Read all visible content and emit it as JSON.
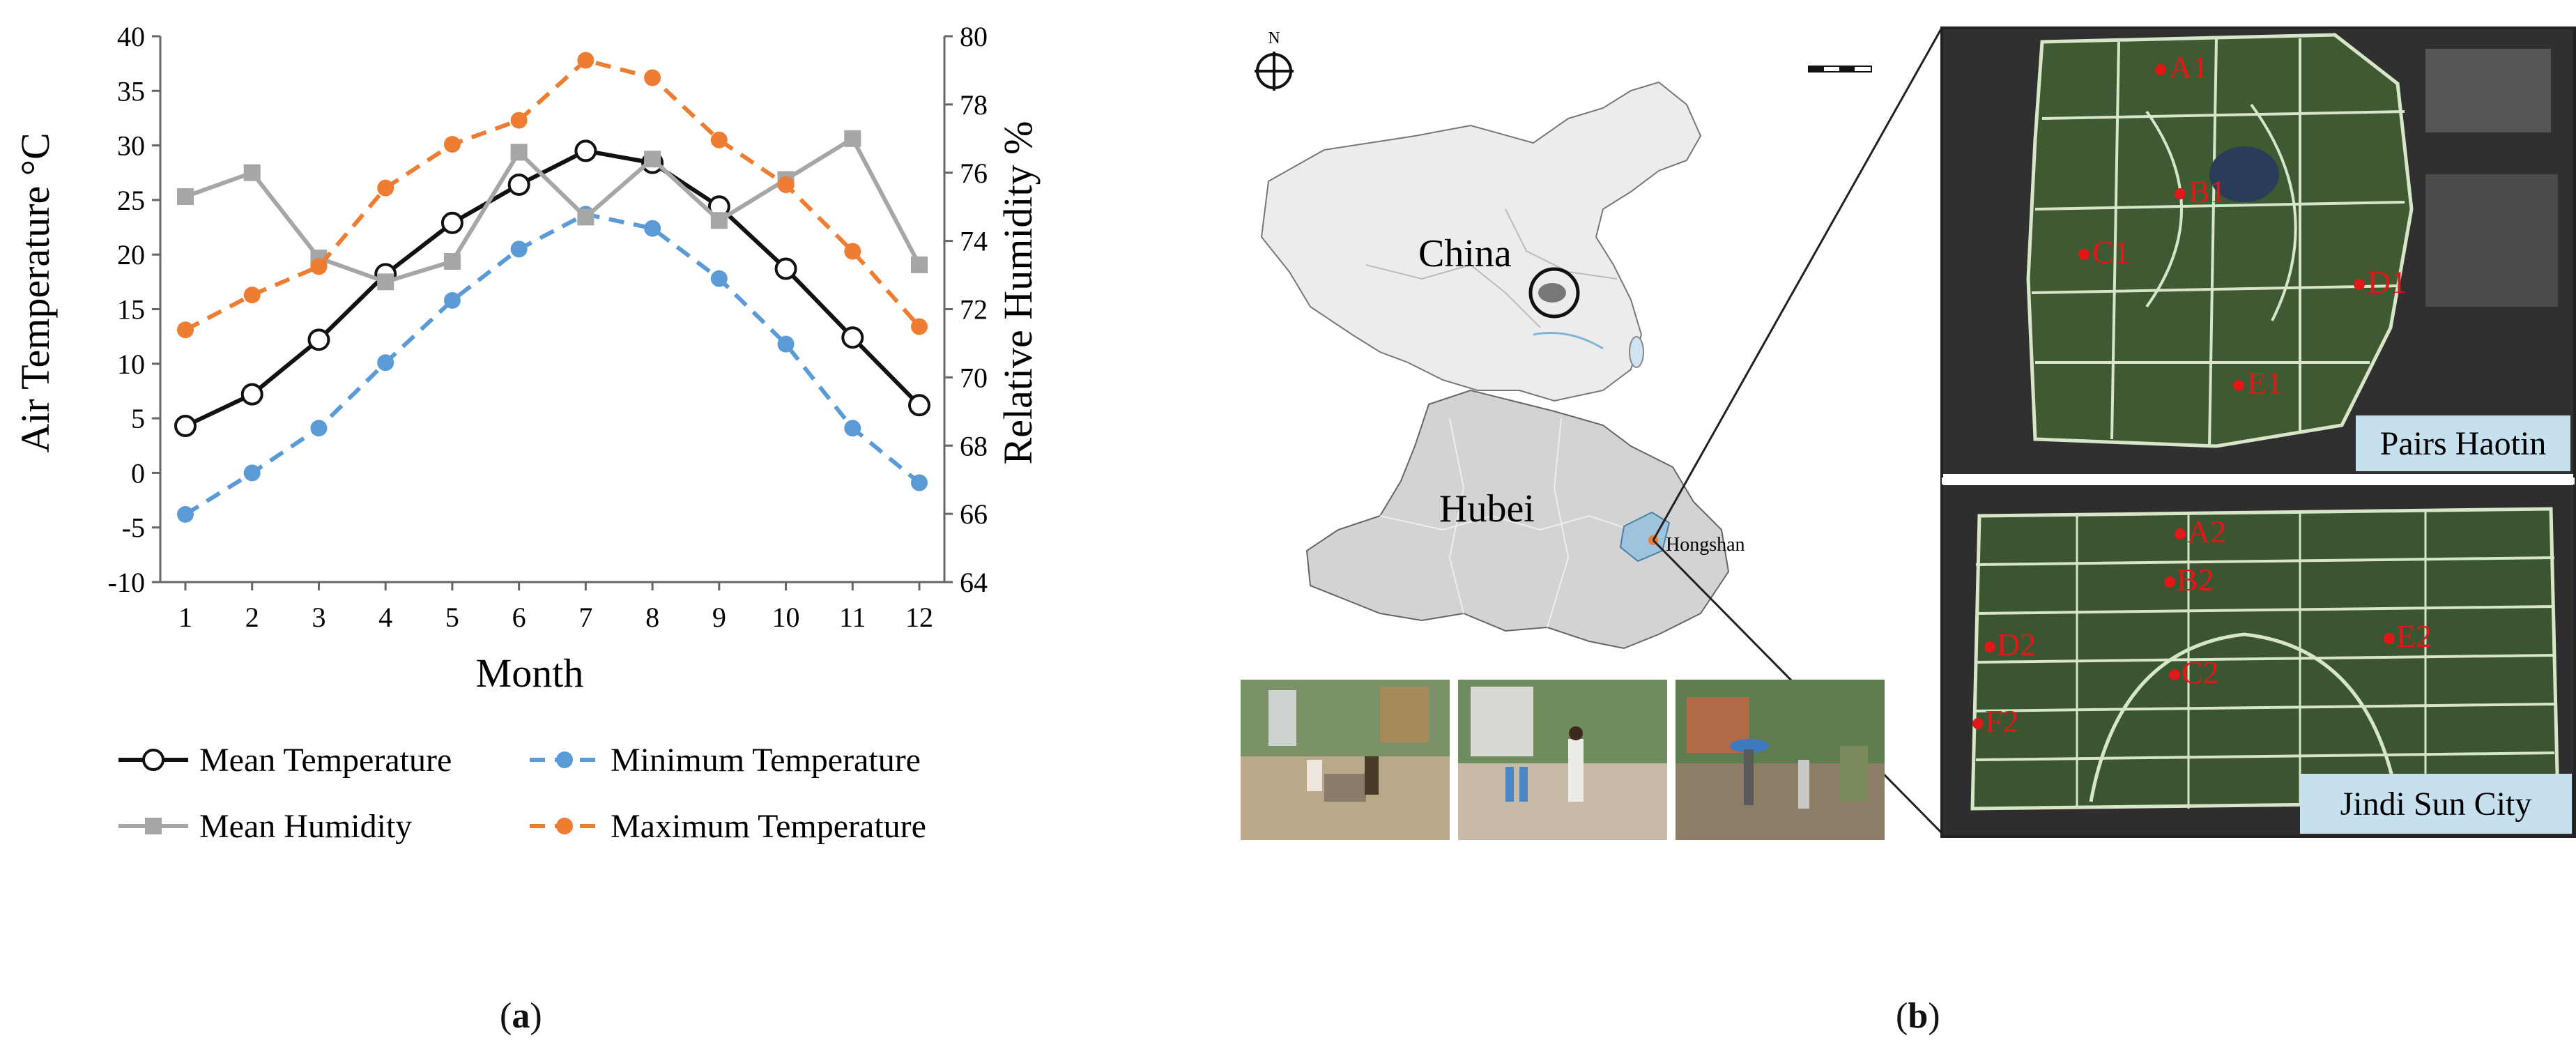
{
  "chart_data": {
    "type": "line",
    "x": [
      1,
      2,
      3,
      4,
      5,
      6,
      7,
      8,
      9,
      10,
      11,
      12
    ],
    "xlabel": "Month",
    "ylabel": "Air Temperature °C",
    "y2label": "Relative Humidity %",
    "ylim": [
      -10,
      40
    ],
    "yticks": [
      -10,
      -5,
      0,
      5,
      10,
      15,
      20,
      25,
      30,
      35,
      40
    ],
    "y2lim": [
      64,
      80
    ],
    "y2ticks": [
      64,
      66,
      68,
      70,
      72,
      74,
      76,
      78,
      80
    ],
    "grid": false,
    "legend_position": "bottom",
    "series": [
      {
        "name": "Mean Temperature",
        "axis": "left",
        "color": "#111111",
        "dash": false,
        "marker": "open-circle",
        "values": [
          4.3,
          7.2,
          12.2,
          18.2,
          22.9,
          26.4,
          29.5,
          28.4,
          24.4,
          18.7,
          12.4,
          6.2
        ]
      },
      {
        "name": "Minimum Temperature",
        "axis": "left",
        "color": "#5b9bd5",
        "dash": true,
        "marker": "dot",
        "values": [
          -3.8,
          0.0,
          4.1,
          10.1,
          15.8,
          20.5,
          23.7,
          22.4,
          17.8,
          11.8,
          4.1,
          -0.9
        ]
      },
      {
        "name": "Mean Humidity",
        "axis": "right",
        "color": "#a6a6a6",
        "dash": false,
        "marker": "square",
        "values": [
          75.3,
          76.0,
          73.5,
          72.8,
          73.4,
          76.6,
          74.7,
          76.4,
          74.6,
          75.8,
          77.0,
          73.3
        ]
      },
      {
        "name": "Maximum Temperature",
        "axis": "left",
        "color": "#ed7d31",
        "dash": true,
        "marker": "dot",
        "values": [
          13.1,
          16.3,
          18.9,
          26.1,
          30.1,
          32.3,
          37.8,
          36.2,
          30.5,
          26.4,
          20.3,
          13.4
        ]
      }
    ]
  },
  "map": {
    "north": "N",
    "china_label": "China",
    "hubei_label": "Hubei",
    "hongshan_label": "Hongshan",
    "site1_label": "Pairs Haotin",
    "site2_label": "Jindi Sun City",
    "site1_points": [
      "A1",
      "B1",
      "C1",
      "D1",
      "E1"
    ],
    "site2_points": [
      "A2",
      "B2",
      "C2",
      "D2",
      "E2",
      "F2"
    ],
    "colors": {
      "map_fill": "#ececec",
      "hubei_fill": "#d3d3d3",
      "hongshan_fill": "#9ec3dc",
      "point": "#e01818",
      "label_box": "#c7e0ee"
    }
  },
  "captions": {
    "a": {
      "open": "(",
      "letter": "a",
      "close": ")"
    },
    "b": {
      "open": "(",
      "letter": "b",
      "close": ")"
    }
  }
}
